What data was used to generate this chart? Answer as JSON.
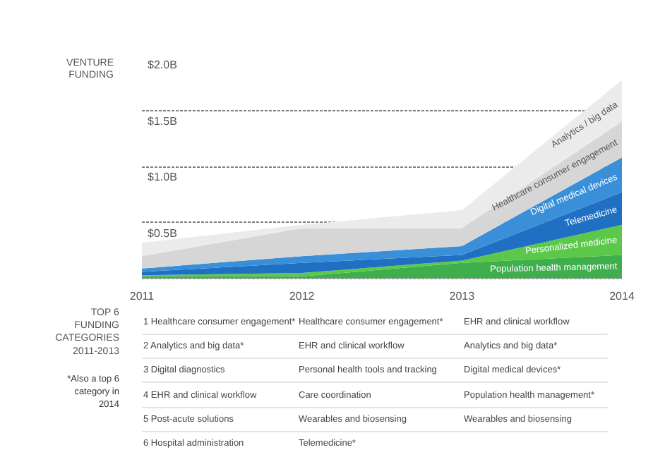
{
  "chart_data": [
    {
      "type": "area",
      "stacked": true,
      "ylabel": "VENTURE FUNDING",
      "x": [
        2011,
        2012,
        2013,
        2014
      ],
      "xlim": [
        2011,
        2014
      ],
      "xticks": [
        2011,
        2012,
        2013,
        2014
      ],
      "ylim": [
        0,
        2.0
      ],
      "yticks": [
        {
          "value": 0.5,
          "label": "$0.5B"
        },
        {
          "value": 1.0,
          "label": "$1.0B"
        },
        {
          "value": 1.5,
          "label": "$1.5B"
        },
        {
          "value": 2.0,
          "label": "$2.0B"
        }
      ],
      "grid": "y",
      "legend": false,
      "series": [
        {
          "name": "Population health management",
          "color": "#3fae4c",
          "values": [
            0.02,
            0.02,
            0.14,
            0.21
          ]
        },
        {
          "name": "Personalized medicine",
          "color": "#5cc84a",
          "values": [
            0.01,
            0.03,
            0.02,
            0.27
          ]
        },
        {
          "name": "Telemedicine",
          "color": "#1f6fc2",
          "values": [
            0.03,
            0.09,
            0.05,
            0.29
          ]
        },
        {
          "name": "Digital medical devices",
          "color": "#3a8fd9",
          "values": [
            0.03,
            0.06,
            0.08,
            0.31
          ]
        },
        {
          "name": "Healthcare consumer engagement",
          "color": "#d6d6d6",
          "values": [
            0.11,
            0.25,
            0.16,
            0.32
          ]
        },
        {
          "name": "Analytics / big data",
          "color": "#ebebeb",
          "values": [
            0.12,
            0.03,
            0.16,
            0.37
          ]
        }
      ]
    },
    {
      "type": "other",
      "title": "TOP 6 FUNDING CATEGORIES 2011-2013",
      "subtitle": "*Also a top 6 category in 2014",
      "annotations": [
        "1",
        "Healthcare consumer engagement*",
        "Healthcare consumer engagement*",
        "EHR and clinical workflow",
        "2",
        "Analytics and big data*",
        "EHR and clinical workflow",
        "Analytics and big data*",
        "3",
        "Digital diagnostics",
        "Personal health tools and tracking",
        "Digital medical devices*",
        "4",
        "EHR and clinical workflow",
        "Care coordination",
        "Population health management*",
        "5",
        "Post-acute solutions",
        "Wearables and biosensing",
        "Wearables and biosensing",
        "6",
        "Hospital administration",
        "Telemedicine*"
      ]
    }
  ]
}
